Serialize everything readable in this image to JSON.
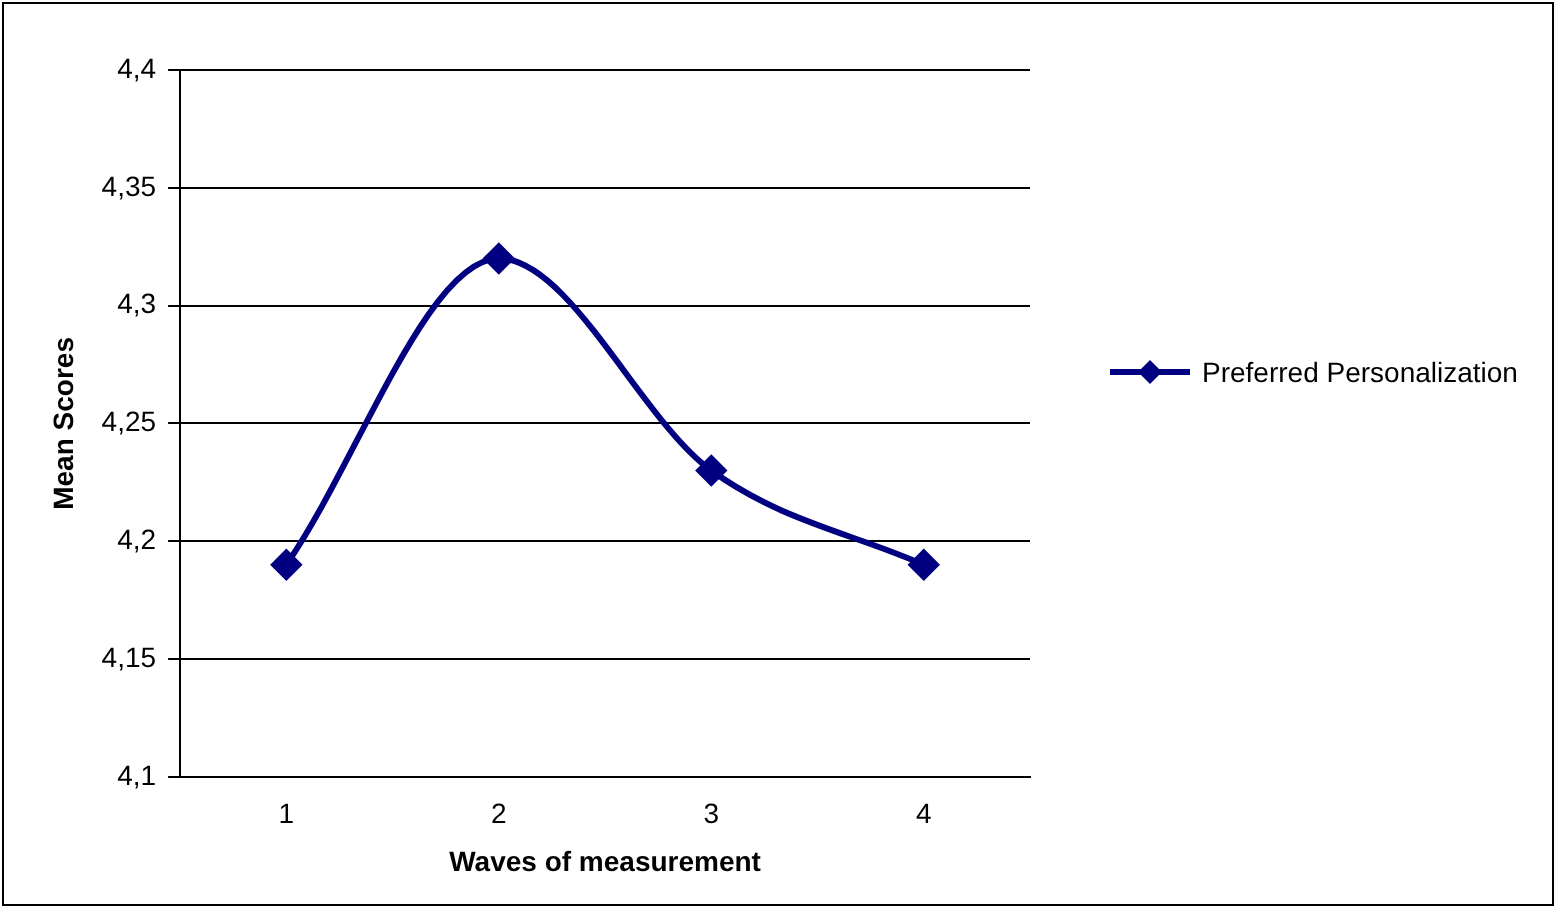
{
  "chart_data": {
    "type": "line",
    "xlabel": "Waves of measurement",
    "ylabel": "Mean Scores",
    "categories": [
      "1",
      "2",
      "3",
      "4"
    ],
    "series": [
      {
        "name": "Preferred Personalization",
        "color": "#000080",
        "values": [
          4.19,
          4.32,
          4.23,
          4.19
        ]
      }
    ],
    "ylim": [
      4.1,
      4.4
    ],
    "yticks": [
      {
        "value": 4.1,
        "label": "4,1"
      },
      {
        "value": 4.15,
        "label": "4,15"
      },
      {
        "value": 4.2,
        "label": "4,2"
      },
      {
        "value": 4.25,
        "label": "4,25"
      },
      {
        "value": 4.3,
        "label": "4,3"
      },
      {
        "value": 4.35,
        "label": "4,35"
      },
      {
        "value": 4.4,
        "label": "4,4"
      }
    ],
    "grid": "y",
    "legend": "right",
    "marker": "diamond",
    "line_style": "solid"
  }
}
